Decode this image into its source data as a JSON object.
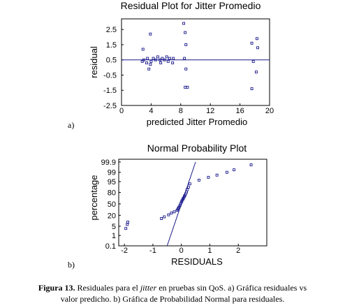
{
  "chart_data": [
    {
      "type": "scatter",
      "panel_label": "a)",
      "title": "Residual Plot for Jitter Promedio",
      "xlabel": "predicted Jitter Promedio",
      "ylabel": "residual",
      "xlim": [
        0,
        20
      ],
      "ylim": [
        -2.5,
        3.2
      ],
      "xticks": [
        "0",
        "4",
        "8",
        "12",
        "16",
        "20"
      ],
      "yticks": [
        "-2.5",
        "-1.5",
        "-0.5",
        "0.5",
        "1.5",
        "2.5"
      ],
      "xtick_values": [
        0,
        4,
        8,
        12,
        16,
        20
      ],
      "ytick_values": [
        -2.5,
        -1.5,
        -0.5,
        0.5,
        1.5,
        2.5
      ],
      "reference_line_y": 0.5,
      "points": [
        [
          3.9,
          2.2
        ],
        [
          2.9,
          1.2
        ],
        [
          2.8,
          0.4
        ],
        [
          3.0,
          0.5
        ],
        [
          3.4,
          0.3
        ],
        [
          3.5,
          0.6
        ],
        [
          3.9,
          0.2
        ],
        [
          4.0,
          0.4
        ],
        [
          4.3,
          0.6
        ],
        [
          3.7,
          -0.1
        ],
        [
          4.6,
          0.5
        ],
        [
          4.9,
          0.7
        ],
        [
          5.2,
          0.5
        ],
        [
          5.3,
          0.3
        ],
        [
          5.5,
          0.6
        ],
        [
          5.8,
          0.5
        ],
        [
          6.1,
          0.7
        ],
        [
          6.3,
          0.4
        ],
        [
          6.5,
          0.6
        ],
        [
          6.9,
          0.3
        ],
        [
          7.0,
          0.6
        ],
        [
          8.4,
          2.9
        ],
        [
          8.6,
          2.3
        ],
        [
          8.7,
          1.5
        ],
        [
          8.5,
          0.6
        ],
        [
          8.7,
          -0.1
        ],
        [
          8.6,
          -1.3
        ],
        [
          8.9,
          -1.3
        ],
        [
          17.6,
          1.6
        ],
        [
          18.3,
          1.9
        ],
        [
          18.4,
          1.3
        ],
        [
          17.8,
          0.4
        ],
        [
          18.2,
          -0.3
        ],
        [
          17.6,
          -1.4
        ]
      ],
      "color": "#1a1a8c"
    },
    {
      "type": "scatter",
      "panel_label": "b)",
      "title": "Normal Probability Plot",
      "xlabel": "RESIDUALS",
      "ylabel": "percentage",
      "xlim": [
        -2.2,
        3
      ],
      "xticks": [
        "-2",
        "-1",
        "0",
        "1",
        "2"
      ],
      "xtick_values": [
        -2,
        -1,
        0,
        1,
        2
      ],
      "yticks": [
        "0.1",
        "1",
        "5",
        "20",
        "50",
        "80",
        "95",
        "99",
        "99.9"
      ],
      "ytick_values": [
        0.1,
        1,
        5,
        20,
        50,
        80,
        95,
        99,
        99.9
      ],
      "ylim": [
        0.1,
        99.95
      ],
      "reference_line": [
        [
          -0.5,
          0.1
        ],
        [
          0.5,
          99.9
        ]
      ],
      "points": [
        [
          -1.95,
          3.5
        ],
        [
          -1.9,
          6.5
        ],
        [
          -1.88,
          9
        ],
        [
          -0.7,
          14
        ],
        [
          -0.6,
          17
        ],
        [
          -0.45,
          21
        ],
        [
          -0.35,
          25
        ],
        [
          -0.25,
          28
        ],
        [
          -0.15,
          32
        ],
        [
          -0.12,
          35
        ],
        [
          -0.1,
          38
        ],
        [
          -0.08,
          41
        ],
        [
          -0.05,
          45
        ],
        [
          -0.03,
          50
        ],
        [
          0.0,
          55
        ],
        [
          0.02,
          59
        ],
        [
          0.05,
          63
        ],
        [
          0.07,
          66
        ],
        [
          0.1,
          70
        ],
        [
          0.12,
          73
        ],
        [
          0.15,
          77
        ],
        [
          0.18,
          81
        ],
        [
          0.2,
          85
        ],
        [
          0.25,
          89
        ],
        [
          0.3,
          93
        ],
        [
          0.62,
          96
        ],
        [
          0.95,
          97.5
        ],
        [
          1.25,
          98.3
        ],
        [
          1.6,
          99
        ],
        [
          1.85,
          99.4
        ],
        [
          2.45,
          99.8
        ]
      ],
      "color": "#1a1a8c"
    }
  ],
  "caption": {
    "label": "Figura 13.",
    "text_before_italic": " Residuales para el ",
    "italic": "jitter",
    "text_after_italic": " en pruebas sin QoS. a) Gráfica residuales vs",
    "line2": "valor predicho. b) Gráfica de Probabilidad Normal para residuales."
  }
}
